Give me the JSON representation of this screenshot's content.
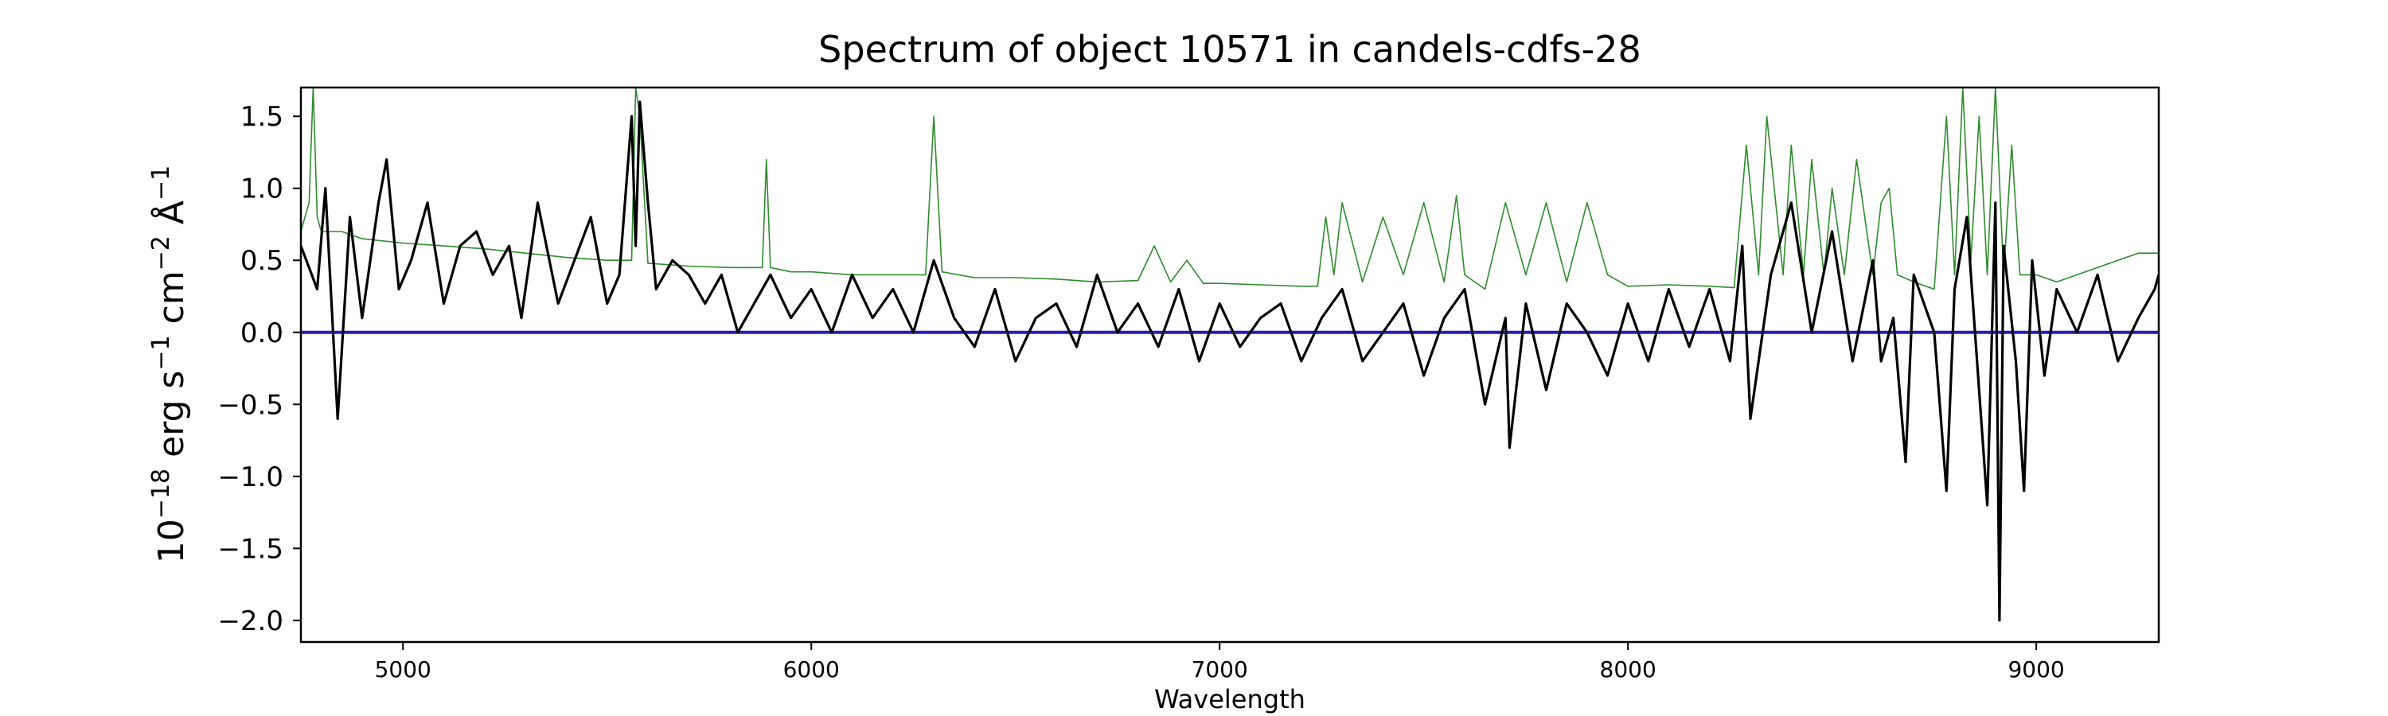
{
  "chart_data": {
    "type": "line",
    "title": "Spectrum of object 10571 in candels-cdfs-28",
    "xlabel": "Wavelength",
    "ylabel": "10^{-18} erg s^{-1} cm^{-2} Å^{-1}",
    "ylabel_parts": {
      "base1": "10",
      "exp1": "−18",
      "erg_s": " erg s",
      "exp2": "−1",
      "cm": " cm",
      "exp3": "−2",
      "angstrom": " Å",
      "exp4": "−1"
    },
    "xlim": [
      4750,
      9300
    ],
    "ylim": [
      -2.15,
      1.7
    ],
    "xticks": [
      5000,
      6000,
      7000,
      8000,
      9000
    ],
    "xtick_labels": [
      "5000",
      "6000",
      "7000",
      "8000",
      "9000"
    ],
    "yticks": [
      -2.0,
      -1.5,
      -1.0,
      -0.5,
      0.0,
      0.5,
      1.0,
      1.5
    ],
    "ytick_labels": [
      "−2.0",
      "−1.5",
      "−1.0",
      "−0.5",
      "0.0",
      "0.5",
      "1.0",
      "1.5"
    ],
    "grid": false,
    "colors": {
      "flux": "#000000",
      "error": "#2e8b2e",
      "zero": "#1f1fbf"
    },
    "series": [
      {
        "role": "flux",
        "x": [
          4750,
          4790,
          4810,
          4840,
          4870,
          4900,
          4940,
          4960,
          4990,
          5020,
          5060,
          5100,
          5140,
          5180,
          5220,
          5260,
          5290,
          5330,
          5380,
          5420,
          5460,
          5500,
          5530,
          5560,
          5570,
          5580,
          5600,
          5620,
          5660,
          5700,
          5740,
          5780,
          5820,
          5860,
          5900,
          5950,
          6000,
          6050,
          6100,
          6150,
          6200,
          6250,
          6300,
          6350,
          6400,
          6450,
          6500,
          6550,
          6600,
          6650,
          6700,
          6750,
          6800,
          6850,
          6900,
          6950,
          7000,
          7050,
          7100,
          7150,
          7200,
          7250,
          7300,
          7350,
          7400,
          7450,
          7500,
          7550,
          7600,
          7650,
          7700,
          7710,
          7750,
          7800,
          7850,
          7900,
          7950,
          8000,
          8050,
          8100,
          8150,
          8200,
          8250,
          8280,
          8300,
          8350,
          8400,
          8450,
          8500,
          8550,
          8600,
          8620,
          8650,
          8680,
          8700,
          8750,
          8780,
          8800,
          8830,
          8860,
          8880,
          8900,
          8910,
          8920,
          8950,
          8970,
          8990,
          9020,
          9050,
          9100,
          9150,
          9200,
          9250,
          9290,
          9300
        ],
        "y": [
          0.6,
          0.3,
          1.0,
          -0.6,
          0.8,
          0.1,
          0.9,
          1.2,
          0.3,
          0.5,
          0.9,
          0.2,
          0.6,
          0.7,
          0.4,
          0.6,
          0.1,
          0.9,
          0.2,
          0.5,
          0.8,
          0.2,
          0.4,
          1.5,
          0.6,
          1.6,
          0.9,
          0.3,
          0.5,
          0.4,
          0.2,
          0.4,
          0.0,
          0.2,
          0.4,
          0.1,
          0.3,
          0.0,
          0.4,
          0.1,
          0.3,
          0.0,
          0.5,
          0.1,
          -0.1,
          0.3,
          -0.2,
          0.1,
          0.2,
          -0.1,
          0.4,
          0.0,
          0.2,
          -0.1,
          0.3,
          -0.2,
          0.2,
          -0.1,
          0.1,
          0.2,
          -0.2,
          0.1,
          0.3,
          -0.2,
          0.0,
          0.2,
          -0.3,
          0.1,
          0.3,
          -0.5,
          0.1,
          -0.8,
          0.2,
          -0.4,
          0.2,
          0.0,
          -0.3,
          0.2,
          -0.2,
          0.3,
          -0.1,
          0.3,
          -0.2,
          0.6,
          -0.6,
          0.4,
          0.9,
          0.0,
          0.7,
          -0.2,
          0.5,
          -0.2,
          0.1,
          -0.9,
          0.4,
          0.0,
          -1.1,
          0.3,
          0.8,
          -0.4,
          -1.2,
          0.9,
          -2.0,
          0.6,
          -0.2,
          -1.1,
          0.5,
          -0.3,
          0.3,
          0.0,
          0.4,
          -0.2,
          0.1,
          0.3,
          0.4
        ]
      },
      {
        "role": "error",
        "x": [
          4750,
          4770,
          4780,
          4790,
          4800,
          4850,
          4900,
          5000,
          5100,
          5200,
          5300,
          5400,
          5500,
          5560,
          5570,
          5580,
          5600,
          5700,
          5800,
          5880,
          5890,
          5900,
          5950,
          6000,
          6100,
          6200,
          6280,
          6300,
          6320,
          6400,
          6500,
          6600,
          6700,
          6800,
          6840,
          6880,
          6920,
          6960,
          7000,
          7100,
          7200,
          7240,
          7260,
          7280,
          7300,
          7350,
          7400,
          7450,
          7500,
          7550,
          7580,
          7600,
          7650,
          7700,
          7750,
          7800,
          7850,
          7900,
          7950,
          8000,
          8100,
          8200,
          8260,
          8290,
          8320,
          8340,
          8380,
          8400,
          8430,
          8450,
          8480,
          8500,
          8530,
          8560,
          8600,
          8620,
          8640,
          8660,
          8700,
          8750,
          8780,
          8800,
          8820,
          8840,
          8860,
          8880,
          8900,
          8920,
          8940,
          8960,
          9000,
          9050,
          9100,
          9150,
          9200,
          9250,
          9300
        ],
        "y": [
          0.7,
          0.9,
          1.7,
          0.8,
          0.7,
          0.7,
          0.65,
          0.62,
          0.6,
          0.58,
          0.55,
          0.52,
          0.5,
          0.5,
          1.7,
          1.5,
          0.48,
          0.46,
          0.45,
          0.45,
          1.2,
          0.45,
          0.42,
          0.42,
          0.4,
          0.4,
          0.4,
          1.5,
          0.42,
          0.38,
          0.38,
          0.37,
          0.35,
          0.36,
          0.6,
          0.35,
          0.5,
          0.34,
          0.34,
          0.33,
          0.32,
          0.32,
          0.8,
          0.4,
          0.9,
          0.35,
          0.8,
          0.4,
          0.9,
          0.35,
          0.95,
          0.4,
          0.3,
          0.9,
          0.4,
          0.9,
          0.35,
          0.9,
          0.4,
          0.32,
          0.33,
          0.32,
          0.31,
          1.3,
          0.4,
          1.5,
          0.4,
          1.3,
          0.4,
          1.2,
          0.4,
          1.0,
          0.4,
          1.2,
          0.4,
          0.9,
          1.0,
          0.4,
          0.35,
          0.3,
          1.5,
          0.4,
          1.7,
          0.5,
          1.5,
          0.4,
          1.7,
          0.4,
          1.3,
          0.4,
          0.4,
          0.35,
          0.4,
          0.45,
          0.5,
          0.55,
          0.55
        ]
      },
      {
        "role": "zero",
        "x": [
          4750,
          9300
        ],
        "y": [
          0,
          0
        ]
      }
    ]
  }
}
